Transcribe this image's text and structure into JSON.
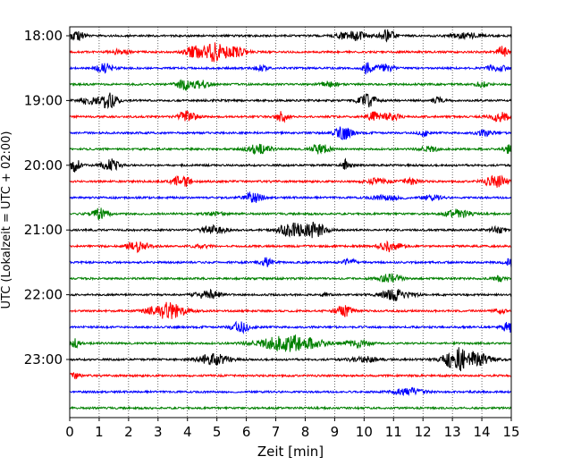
{
  "chart_data": {
    "type": "line",
    "title": "",
    "xlabel": "Zeit  [min]",
    "ylabel": "UTC (Lokalzeit = UTC + 02:00)",
    "xlim": [
      0,
      15
    ],
    "x_ticks": [
      "0",
      "1",
      "2",
      "3",
      "4",
      "5",
      "6",
      "7",
      "8",
      "9",
      "10",
      "11",
      "12",
      "13",
      "14",
      "15"
    ],
    "y_ticks": [
      {
        "label": "18:00",
        "trace": 0
      },
      {
        "label": "19:00",
        "trace": 4
      },
      {
        "label": "20:00",
        "trace": 8
      },
      {
        "label": "21:00",
        "trace": 12
      },
      {
        "label": "22:00",
        "trace": 16
      },
      {
        "label": "23:00",
        "trace": 20
      }
    ],
    "grid": "vertical dotted at each minute",
    "trace_minutes": 15,
    "color_cycle": [
      "#000000",
      "#ff0000",
      "#0000ff",
      "#008000"
    ],
    "traces": [
      {
        "start": "18:00",
        "color": "#000000",
        "bursts": [
          [
            0.25,
            6,
            0.25
          ],
          [
            9.6,
            5,
            0.5
          ],
          [
            10.8,
            7,
            0.25
          ],
          [
            13.5,
            3,
            0.5
          ]
        ]
      },
      {
        "start": "18:15",
        "color": "#ff0000",
        "bursts": [
          [
            4.2,
            6,
            0.3
          ],
          [
            4.9,
            10,
            0.4
          ],
          [
            5.6,
            5,
            0.4
          ],
          [
            14.7,
            6,
            0.2
          ],
          [
            1.7,
            3,
            0.3
          ]
        ]
      },
      {
        "start": "18:30",
        "color": "#0000ff",
        "bursts": [
          [
            1.2,
            5,
            0.3
          ],
          [
            6.5,
            3,
            0.2
          ],
          [
            10.1,
            7,
            0.15
          ],
          [
            10.7,
            4,
            0.3
          ],
          [
            14.5,
            4,
            0.3
          ]
        ]
      },
      {
        "start": "18:45",
        "color": "#008000",
        "bursts": [
          [
            3.9,
            6,
            0.3
          ],
          [
            4.5,
            4,
            0.3
          ],
          [
            8.8,
            3,
            0.3
          ],
          [
            14.0,
            3,
            0.2
          ]
        ]
      },
      {
        "start": "19:00",
        "color": "#000000",
        "bursts": [
          [
            1.3,
            9,
            0.3
          ],
          [
            0.6,
            4,
            0.3
          ],
          [
            10.1,
            7,
            0.3
          ],
          [
            12.5,
            3,
            0.2
          ]
        ]
      },
      {
        "start": "19:15",
        "color": "#ff0000",
        "bursts": [
          [
            4.0,
            6,
            0.3
          ],
          [
            7.2,
            6,
            0.2
          ],
          [
            10.3,
            5,
            0.2
          ],
          [
            10.9,
            4,
            0.3
          ],
          [
            14.6,
            5,
            0.3
          ]
        ]
      },
      {
        "start": "19:30",
        "color": "#0000ff",
        "bursts": [
          [
            9.3,
            7,
            0.3
          ],
          [
            12.0,
            4,
            0.15
          ],
          [
            14.1,
            3,
            0.3
          ]
        ]
      },
      {
        "start": "19:45",
        "color": "#008000",
        "bursts": [
          [
            6.4,
            5,
            0.4
          ],
          [
            8.5,
            6,
            0.3
          ],
          [
            12.2,
            3,
            0.3
          ],
          [
            14.9,
            5,
            0.15
          ]
        ]
      },
      {
        "start": "20:00",
        "color": "#000000",
        "bursts": [
          [
            0.2,
            7,
            0.2
          ],
          [
            1.4,
            7,
            0.3
          ],
          [
            9.4,
            6,
            0.15
          ]
        ]
      },
      {
        "start": "20:15",
        "color": "#ff0000",
        "bursts": [
          [
            3.8,
            7,
            0.3
          ],
          [
            10.4,
            3,
            0.4
          ],
          [
            11.6,
            3,
            0.3
          ],
          [
            14.5,
            6,
            0.4
          ]
        ]
      },
      {
        "start": "20:30",
        "color": "#0000ff",
        "bursts": [
          [
            6.2,
            6,
            0.3
          ],
          [
            10.8,
            3,
            0.5
          ],
          [
            12.3,
            3,
            0.3
          ]
        ]
      },
      {
        "start": "20:45",
        "color": "#008000",
        "bursts": [
          [
            1.0,
            6,
            0.3
          ],
          [
            13.2,
            5,
            0.4
          ],
          [
            5.0,
            2,
            0.3
          ]
        ]
      },
      {
        "start": "21:00",
        "color": "#000000",
        "bursts": [
          [
            4.9,
            5,
            0.4
          ],
          [
            7.5,
            8,
            0.4
          ],
          [
            8.3,
            8,
            0.4
          ],
          [
            14.5,
            3,
            0.3
          ]
        ]
      },
      {
        "start": "21:15",
        "color": "#ff0000",
        "bursts": [
          [
            2.3,
            6,
            0.35
          ],
          [
            10.9,
            6,
            0.35
          ],
          [
            4.5,
            2,
            0.3
          ]
        ]
      },
      {
        "start": "21:30",
        "color": "#0000ff",
        "bursts": [
          [
            6.7,
            5,
            0.2
          ],
          [
            9.5,
            4,
            0.2
          ],
          [
            15.0,
            5,
            0.2
          ]
        ]
      },
      {
        "start": "21:45",
        "color": "#008000",
        "bursts": [
          [
            10.9,
            5,
            0.35
          ],
          [
            14.6,
            3,
            0.2
          ]
        ]
      },
      {
        "start": "22:00",
        "color": "#000000",
        "bursts": [
          [
            4.7,
            5,
            0.4
          ],
          [
            11.1,
            6,
            0.5
          ],
          [
            8.7,
            2,
            0.15
          ]
        ]
      },
      {
        "start": "22:15",
        "color": "#ff0000",
        "bursts": [
          [
            3.3,
            9,
            0.6
          ],
          [
            9.3,
            6,
            0.3
          ],
          [
            14.6,
            3,
            0.2
          ]
        ]
      },
      {
        "start": "22:30",
        "color": "#0000ff",
        "bursts": [
          [
            5.8,
            6,
            0.3
          ],
          [
            14.9,
            6,
            0.2
          ]
        ]
      },
      {
        "start": "22:45",
        "color": "#008000",
        "bursts": [
          [
            0.2,
            5,
            0.15
          ],
          [
            7.5,
            9,
            1.0
          ],
          [
            9.8,
            4,
            0.4
          ]
        ]
      },
      {
        "start": "23:00",
        "color": "#000000",
        "bursts": [
          [
            4.9,
            6,
            0.5
          ],
          [
            10.0,
            3,
            0.5
          ],
          [
            13.1,
            12,
            0.4
          ],
          [
            13.8,
            7,
            0.5
          ]
        ]
      },
      {
        "start": "23:15",
        "color": "#ff0000",
        "bursts": [
          [
            0.2,
            3,
            0.2
          ]
        ]
      },
      {
        "start": "23:30",
        "color": "#0000ff",
        "bursts": [
          [
            11.5,
            4,
            0.5
          ]
        ]
      },
      {
        "start": "23:45",
        "color": "#008000",
        "bursts": []
      }
    ]
  }
}
